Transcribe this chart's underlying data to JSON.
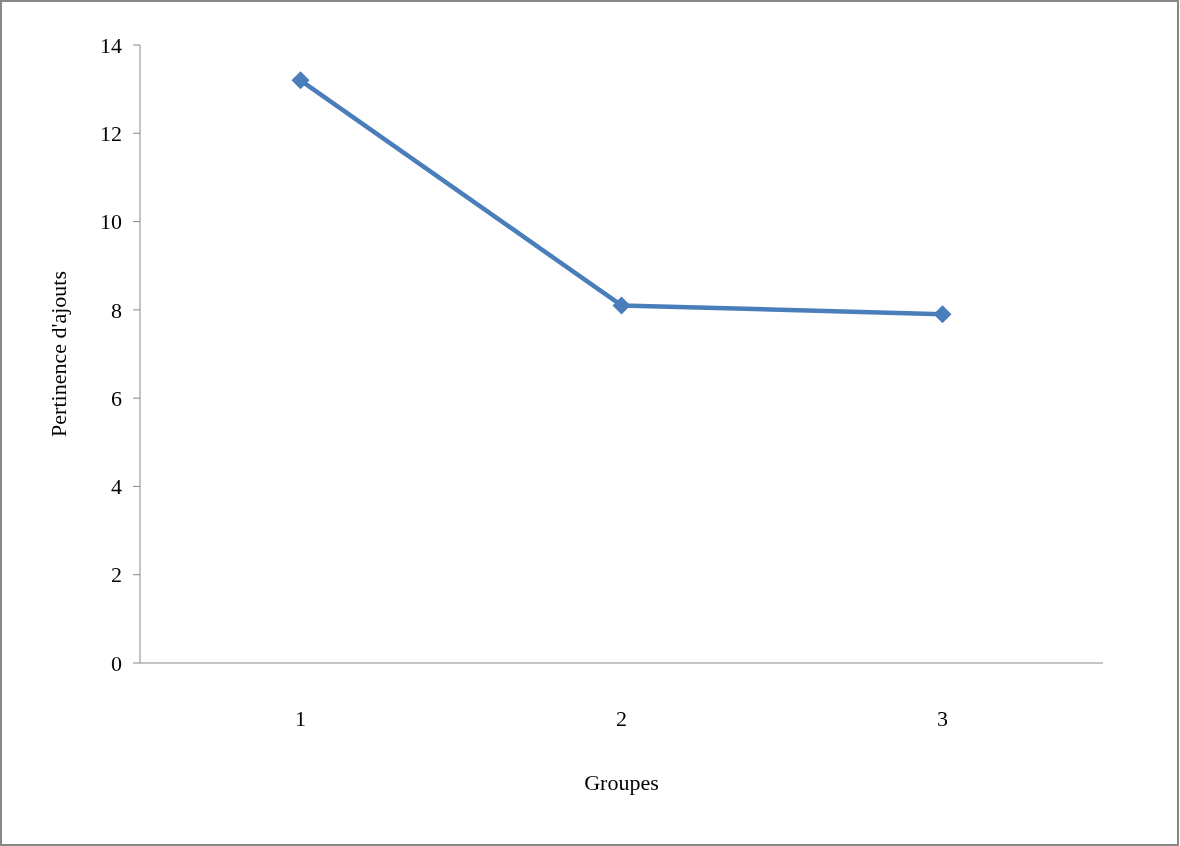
{
  "chart_data": {
    "type": "line",
    "xlabel": "Groupes",
    "ylabel": "Pertinence d'ajouts",
    "categories": [
      "1",
      "2",
      "3"
    ],
    "series": [
      {
        "color": "#4a7ebb",
        "values": [
          13.2,
          8.1,
          7.9
        ]
      }
    ],
    "ylim": [
      0,
      14
    ],
    "yticks": [
      0,
      2,
      4,
      6,
      8,
      10,
      12,
      14
    ],
    "marker": "diamond",
    "line_style": "solid",
    "grid": false
  }
}
